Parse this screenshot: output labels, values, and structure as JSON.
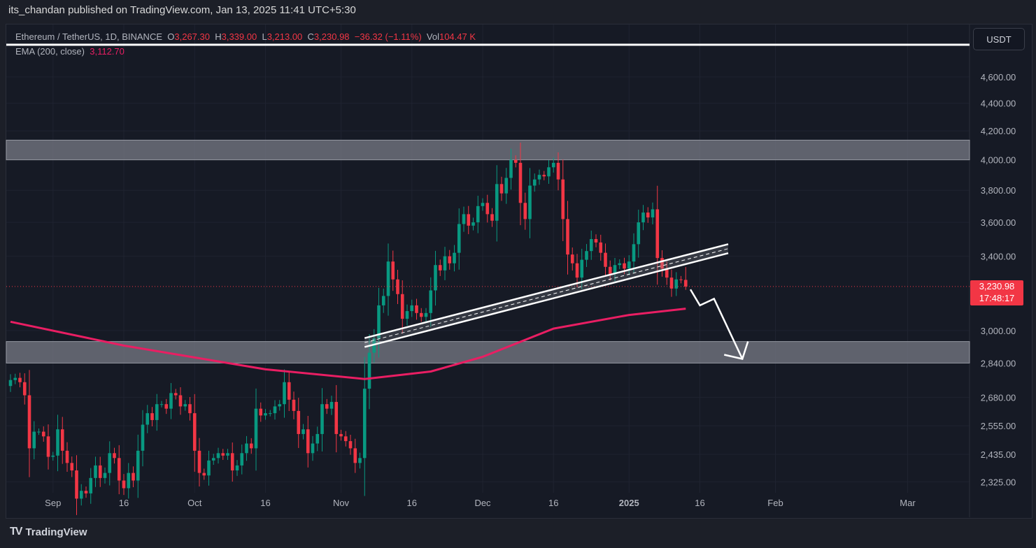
{
  "header": {
    "published": "its_chandan published on TradingView.com, Jan 13, 2025 11:41 UTC+5:30"
  },
  "legend": {
    "symbol": "Ethereum / TetherUS, 1D, BINANCE",
    "o_label": "O",
    "o": "3,267.30",
    "h_label": "H",
    "h": "3,339.00",
    "l_label": "L",
    "l": "3,213.00",
    "c_label": "C",
    "c": "3,230.98",
    "change": "−36.32 (−1.11%)",
    "vol_label": "Vol",
    "vol": "104.47 K",
    "ema_label": "EMA (200, close)",
    "ema": "3,112.70"
  },
  "currency_button": "USDT",
  "price_tag": {
    "price": "3,230.98",
    "countdown": "17:48:17"
  },
  "footer": {
    "brand": "TradingView",
    "logo": "TV"
  },
  "colors": {
    "up": "#089981",
    "down": "#f23645",
    "ema": "#e91e63",
    "zone": "#787b86",
    "background": "#161a25"
  },
  "chart_data": {
    "type": "candlestick",
    "scale": "log",
    "start_date": "2024-08-23",
    "closes": [
      2760,
      2770,
      2750,
      2690,
      2460,
      2530,
      2530,
      2510,
      2425,
      2430,
      2540,
      2450,
      2400,
      2370,
      2260,
      2290,
      2280,
      2340,
      2390,
      2340,
      2360,
      2440,
      2420,
      2330,
      2300,
      2360,
      2330,
      2450,
      2560,
      2610,
      2580,
      2650,
      2650,
      2630,
      2700,
      2690,
      2640,
      2650,
      2610,
      2450,
      2360,
      2350,
      2410,
      2420,
      2440,
      2430,
      2440,
      2370,
      2390,
      2440,
      2480,
      2460,
      2630,
      2600,
      2610,
      2610,
      2640,
      2650,
      2750,
      2670,
      2620,
      2520,
      2540,
      2440,
      2480,
      2520,
      2650,
      2630,
      2660,
      2520,
      2510,
      2490,
      2460,
      2400,
      2420,
      2720,
      2890,
      2960,
      3130,
      3180,
      3370,
      3270,
      3190,
      3060,
      3100,
      3130,
      3090,
      3070,
      3090,
      3210,
      3350,
      3320,
      3400,
      3360,
      3420,
      3590,
      3650,
      3580,
      3600,
      3700,
      3720,
      3650,
      3610,
      3840,
      3780,
      3880,
      4000,
      3980,
      3720,
      3620,
      3830,
      3870,
      3900,
      3890,
      3950,
      3980,
      3870,
      3620,
      3410,
      3360,
      3280,
      3380,
      3430,
      3500,
      3480,
      3420,
      3340,
      3300,
      3350,
      3360,
      3330,
      3370,
      3470,
      3600,
      3660,
      3630,
      3680,
      3390,
      3330,
      3280,
      3220,
      3270,
      3267.3,
      3230.98
    ],
    "last_candle": {
      "open": 3267.3,
      "high": 3339.0,
      "low": 3213.0,
      "close": 3230.98
    },
    "ema200": [
      [
        "2024-08-23",
        3045
      ],
      [
        "2024-09-16",
        2925
      ],
      [
        "2024-10-16",
        2810
      ],
      [
        "2024-11-06",
        2765
      ],
      [
        "2024-11-20",
        2800
      ],
      [
        "2024-12-01",
        2870
      ],
      [
        "2024-12-16",
        3010
      ],
      [
        "2025-01-01",
        3080
      ],
      [
        "2025-01-13",
        3112.7
      ]
    ],
    "y_ticks": [
      "4,600.00",
      "4,400.00",
      "4,200.00",
      "4,000.00",
      "3,800.00",
      "3,600.00",
      "3,400.00",
      "3,000.00",
      "2,840.00",
      "2,680.00",
      "2,555.00",
      "2,435.00",
      "2,325.00"
    ],
    "y_tick_values": [
      4600,
      4400,
      4200,
      4000,
      3800,
      3600,
      3400,
      3000,
      2840,
      2680,
      2555,
      2435,
      2325
    ],
    "x_ticks": [
      [
        "Sep",
        "2024-09-01"
      ],
      [
        "16",
        "2024-09-16"
      ],
      [
        "Oct",
        "2024-10-01"
      ],
      [
        "16",
        "2024-10-16"
      ],
      [
        "Nov",
        "2024-11-01"
      ],
      [
        "16",
        "2024-11-16"
      ],
      [
        "Dec",
        "2024-12-01"
      ],
      [
        "16",
        "2024-12-16"
      ],
      [
        "2025",
        "2025-01-01"
      ],
      [
        "16",
        "2025-01-16"
      ],
      [
        "Feb",
        "2025-02-01"
      ],
      [
        "Mar",
        "2025-03-01"
      ]
    ],
    "zones": [
      {
        "from": 4000,
        "to": 4135
      },
      {
        "from": 2840,
        "to": 2945
      }
    ],
    "channel": [
      {
        "start": [
          "2024-11-06",
          2962
        ],
        "end": [
          "2025-01-22",
          3470
        ]
      },
      {
        "start": [
          "2024-11-06",
          2918
        ],
        "end": [
          "2025-01-22",
          3418
        ]
      }
    ],
    "arrow": [
      [
        "2025-01-14",
        3215
      ],
      [
        "2025-01-16",
        3130
      ],
      [
        "2025-01-19",
        3165
      ],
      [
        "2025-01-25",
        2860
      ]
    ],
    "resistance_line": 4780
  }
}
